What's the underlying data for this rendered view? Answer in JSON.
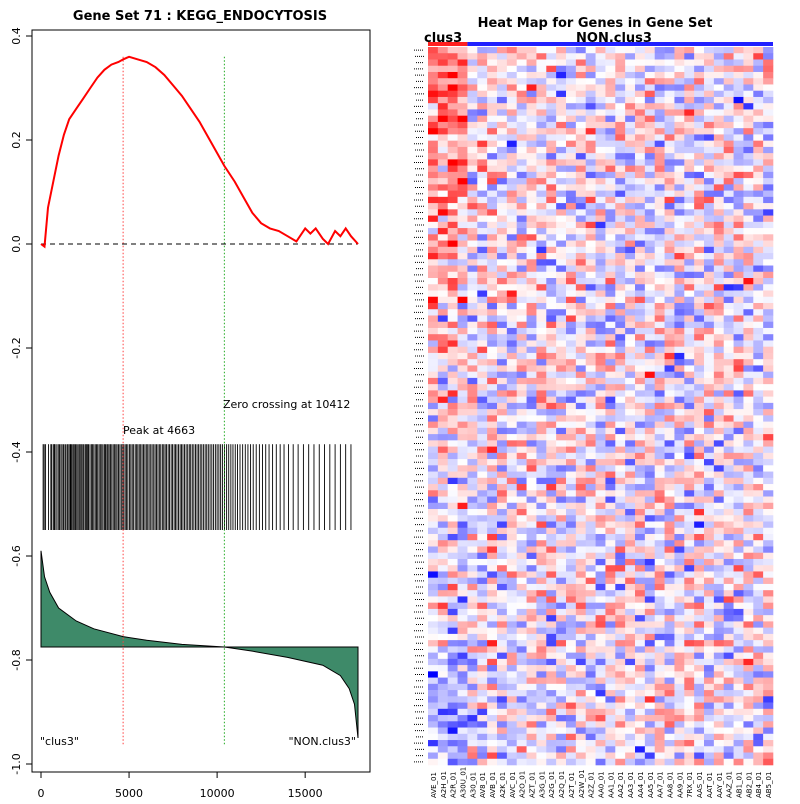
{
  "gsea_plot": {
    "title": "Gene Set  71 : KEGG_ENDOCYTOSIS",
    "peak_label": "Peak at 4663",
    "zero_label": "Zero crossing at 10412",
    "left_label": "\"clus3\"",
    "right_label": "\"NON.clus3\""
  },
  "heatmap": {
    "title": "Heat Map for Genes in Gene Set",
    "group1_label": "clus3",
    "group2_label": "NON.clus3",
    "n_rows": 115,
    "n_cols": 35,
    "n_group1_cols": 4,
    "seed": 71,
    "sample_labels": [
      "AVE_01",
      "A2H_01",
      "A2R_01",
      "A30U_01",
      "A30_01",
      "AV8_01",
      "AVB_01",
      "A2K_01",
      "AVC_01",
      "A2O_01",
      "AZT_01",
      "A3G_01",
      "A2G_01",
      "A2Q_01",
      "A2T_01",
      "A2W_01",
      "A2Z_01",
      "AA0_01",
      "AA1_01",
      "AA2_01",
      "AA3_01",
      "AA4_01",
      "AA5_01",
      "AA7_01",
      "AA8_01",
      "AA9_01",
      "7RX_01",
      "AAS_01",
      "AAT_01",
      "AAY_01",
      "AAZ_01",
      "AB1_01",
      "AB2_01",
      "AB4_01",
      "AB5_01"
    ]
  },
  "chart_data": [
    {
      "type": "line",
      "title": "Gene Set  71 : KEGG_ENDOCYTOSIS",
      "xlim": [
        0,
        18100
      ],
      "ylim": [
        -1.0,
        0.4
      ],
      "x_ticks": [
        0,
        5000,
        10000,
        15000
      ],
      "y_ticks": [
        0.4,
        0.2,
        0.0,
        -0.2,
        -0.4,
        -0.6,
        -0.8,
        -1.0
      ],
      "peak_x": 4663,
      "zero_crossing_x": 10412,
      "baseline_y": 0,
      "series": [
        {
          "name": "running enrichment score",
          "color": "#ff0000",
          "x": [
            0,
            200,
            400,
            700,
            1000,
            1300,
            1600,
            2000,
            2400,
            2800,
            3200,
            3600,
            4000,
            4400,
            4663,
            5000,
            5500,
            6000,
            6500,
            7000,
            7500,
            8000,
            8500,
            9000,
            9500,
            10000,
            10412,
            11000,
            11500,
            12000,
            12500,
            13000,
            13500,
            14000,
            14500,
            15000,
            15300,
            15600,
            16000,
            16300,
            16700,
            17000,
            17300,
            17600,
            18000
          ],
          "y": [
            0.0,
            -0.005,
            0.07,
            0.12,
            0.17,
            0.21,
            0.24,
            0.26,
            0.28,
            0.3,
            0.32,
            0.335,
            0.345,
            0.35,
            0.355,
            0.36,
            0.355,
            0.35,
            0.34,
            0.325,
            0.305,
            0.285,
            0.26,
            0.235,
            0.205,
            0.175,
            0.15,
            0.12,
            0.09,
            0.06,
            0.04,
            0.03,
            0.025,
            0.015,
            0.005,
            0.03,
            0.02,
            0.03,
            0.01,
            0.0,
            0.025,
            0.015,
            0.03,
            0.015,
            0.0
          ]
        },
        {
          "name": "ranked list metric (scaled)",
          "color": "#3e8a69",
          "x": [
            0,
            200,
            500,
            1000,
            2000,
            3000,
            4663,
            6000,
            8000,
            10412,
            12000,
            14000,
            16000,
            17000,
            17500,
            17800,
            18000
          ],
          "y": [
            -0.59,
            -0.64,
            -0.67,
            -0.7,
            -0.725,
            -0.74,
            -0.755,
            -0.762,
            -0.77,
            -0.775,
            -0.783,
            -0.795,
            -0.81,
            -0.83,
            -0.855,
            -0.885,
            -0.95
          ]
        }
      ],
      "hit_band_y": [
        -0.385,
        -0.55
      ],
      "hits": [
        120,
        180,
        260,
        430,
        560,
        610,
        700,
        760,
        800,
        900,
        980,
        1050,
        1130,
        1200,
        1280,
        1360,
        1420,
        1500,
        1580,
        1650,
        1700,
        1760,
        1830,
        1890,
        1960,
        2030,
        2100,
        2170,
        2230,
        2310,
        2380,
        2440,
        2520,
        2590,
        2650,
        2700,
        2780,
        2860,
        2930,
        3000,
        3080,
        3150,
        3220,
        3300,
        3370,
        3450,
        3520,
        3600,
        3660,
        3740,
        3800,
        3870,
        3950,
        4020,
        4100,
        4180,
        4250,
        4320,
        4400,
        4480,
        4560,
        4640,
        4700,
        4780,
        4850,
        4930,
        5020,
        5100,
        5180,
        5260,
        5350,
        5430,
        5500,
        5580,
        5660,
        5740,
        5820,
        5900,
        5980,
        6060,
        6140,
        6230,
        6310,
        6400,
        6480,
        6560,
        6640,
        6720,
        6800,
        6890,
        6970,
        7050,
        7130,
        7220,
        7300,
        7390,
        7470,
        7560,
        7640,
        7720,
        7810,
        7900,
        7980,
        8060,
        8150,
        8240,
        8330,
        8420,
        8500,
        8590,
        8680,
        8770,
        8860,
        8950,
        9040,
        9130,
        9220,
        9320,
        9410,
        9500,
        9600,
        9700,
        9800,
        9900,
        10000,
        10100,
        10200,
        10300,
        10420,
        10540,
        10660,
        10780,
        10900,
        11030,
        11160,
        11300,
        11450,
        11600,
        11750,
        11900,
        12050,
        12220,
        12400,
        12580,
        12760,
        12950,
        13150,
        13360,
        13580,
        13800,
        14050,
        14320,
        14600,
        14900,
        15200,
        15500,
        15800,
        16100,
        16400,
        16700,
        17000,
        17300,
        17600
      ],
      "group_labels": [
        "\"clus3\"",
        "\"NON.clus3\""
      ]
    },
    {
      "type": "heatmap",
      "title": "Heat Map for Genes in Gene Set",
      "groups": [
        {
          "name": "clus3",
          "n_samples": 4,
          "color": "#ff0000"
        },
        {
          "name": "NON.clus3",
          "n_samples": 31,
          "color": "#0000ff"
        }
      ],
      "rows": 115,
      "columns": 35,
      "color_scale": [
        "#0000ff",
        "#ffffff",
        "#ff0000"
      ]
    }
  ]
}
